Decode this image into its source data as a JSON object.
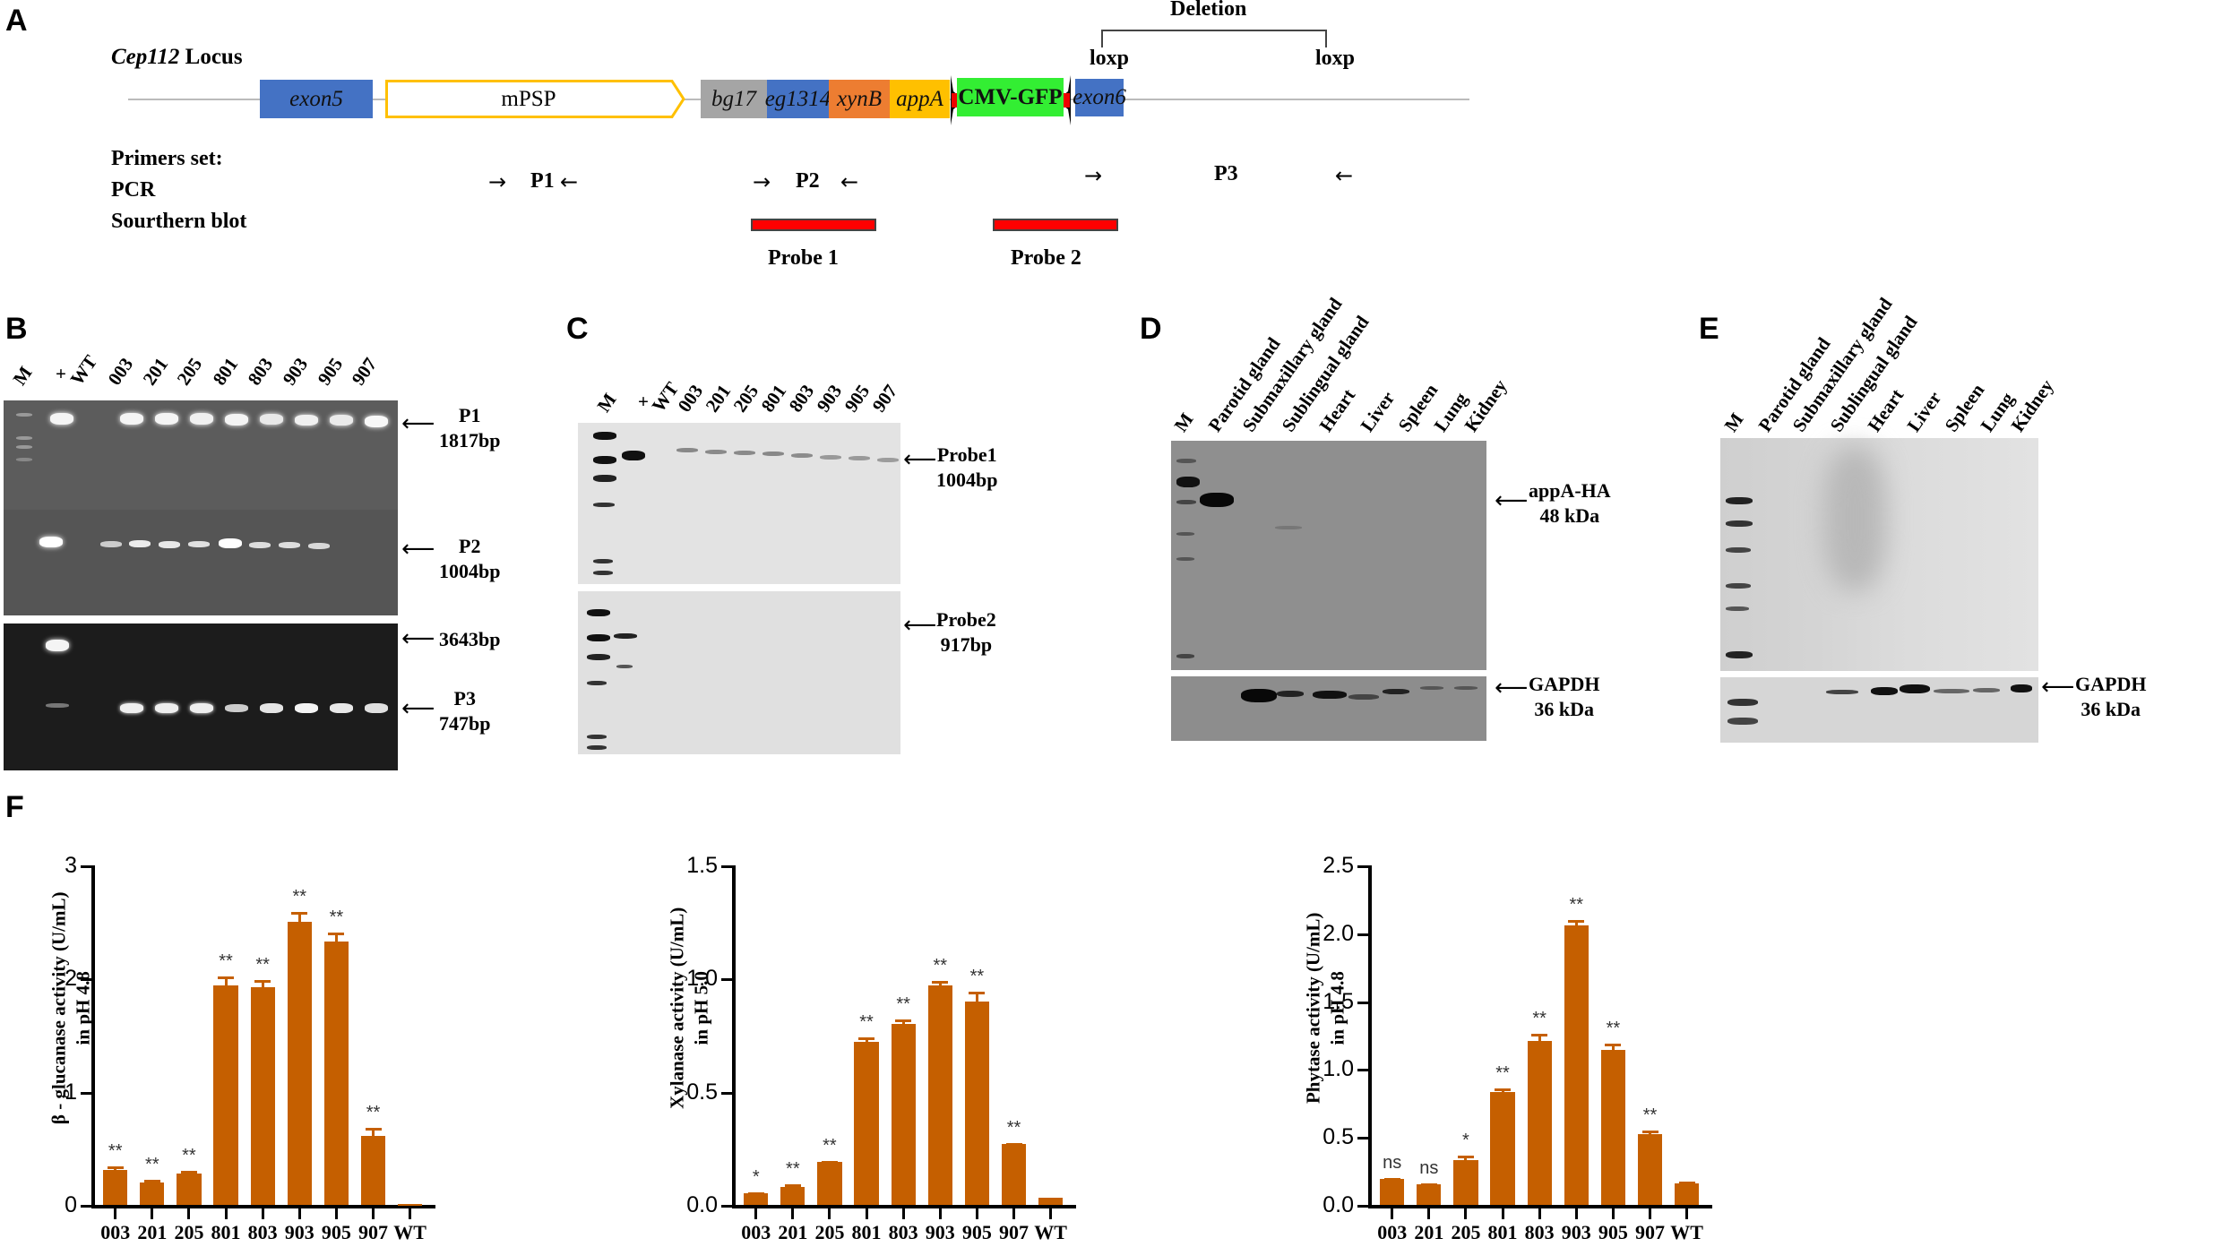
{
  "panels": {
    "A": {
      "letter": "A",
      "locus_gene": "Cep112",
      "locus_word": "Locus",
      "deletion_label": "Deletion",
      "loxp_left": "loxp",
      "loxp_right": "loxp",
      "segments": [
        {
          "label": "exon5",
          "italic": true,
          "color": "#4472c4"
        },
        {
          "label": "mPSP",
          "italic": false,
          "color": "#ffffff",
          "border": "#ffc000"
        },
        {
          "label": "bg17",
          "italic": true,
          "color": "#a5a5a5"
        },
        {
          "label": "eg1314",
          "italic": true,
          "color": "#4472c4"
        },
        {
          "label": "xynB",
          "italic": true,
          "color": "#ed7d31"
        },
        {
          "label": "appA",
          "italic": true,
          "color": "#ffc000"
        },
        {
          "label": "CMV-GFP",
          "italic": false,
          "color": "#33ee33"
        },
        {
          "label": "exon6",
          "italic": true,
          "color": "#4472c4"
        }
      ],
      "primers_title": "Primers set:",
      "pcr_label": "PCR",
      "southern_label": "Sourthern blot",
      "primers": [
        "P1",
        "P2",
        "P3"
      ],
      "probes": [
        "Probe 1",
        "Probe 2"
      ],
      "probe_color": "#ff0000"
    },
    "B": {
      "letter": "B",
      "lanes": [
        "M",
        "+",
        "WT",
        "003",
        "201",
        "205",
        "801",
        "803",
        "903",
        "905",
        "907"
      ],
      "gels": [
        {
          "label": "P1",
          "size": "1817bp"
        },
        {
          "label": "P2",
          "size": "1004bp"
        },
        {
          "label": "P3",
          "size": "747bp",
          "extra": "3643bp"
        }
      ]
    },
    "C": {
      "letter": "C",
      "lanes": [
        "M",
        "+",
        "WT",
        "003",
        "201",
        "205",
        "801",
        "803",
        "903",
        "905",
        "907"
      ],
      "blots": [
        {
          "label": "Probe1",
          "size": "1004bp"
        },
        {
          "label": "Probe2",
          "size": "917bp"
        }
      ]
    },
    "D": {
      "letter": "D",
      "lanes": [
        "M",
        "Parotid gland",
        "Submaxillary  gland",
        "Sublingual gland",
        "Heart",
        "Liver",
        "Spleen",
        "Lung",
        "Kidney"
      ],
      "target": {
        "label": "appA-HA",
        "size": "48 kDa"
      },
      "control": {
        "label": "GAPDH",
        "size": "36 kDa"
      }
    },
    "E": {
      "letter": "E",
      "lanes": [
        "M",
        "Parotid gland",
        "Submaxillary  gland",
        "Sublingual gland",
        "Heart",
        "Liver",
        "Spleen",
        "Lung",
        "Kidney"
      ],
      "control": {
        "label": "GAPDH",
        "size": "36 kDa"
      }
    },
    "F": {
      "letter": "F"
    }
  },
  "chart_data": [
    {
      "type": "bar",
      "title": "",
      "xlabel": "",
      "ylabel": "β - glucanase activity  (U/mL) in pH 4.8",
      "ylabel_line1": "β - glucanase activity  (U/mL)",
      "ylabel_line2": "in pH 4.8",
      "categories": [
        "003",
        "201",
        "205",
        "801",
        "803",
        "903",
        "905",
        "907",
        "WT"
      ],
      "values": [
        0.31,
        0.2,
        0.28,
        1.94,
        1.92,
        2.5,
        2.33,
        0.61,
        0.01
      ],
      "errors": [
        0.03,
        0.02,
        0.02,
        0.08,
        0.07,
        0.09,
        0.08,
        0.07,
        0.0
      ],
      "significance": [
        "**",
        "**",
        "**",
        "**",
        "**",
        "**",
        "**",
        "**",
        ""
      ],
      "ylim": [
        0,
        3
      ],
      "yticks": [
        "0",
        "1",
        "2",
        "3"
      ],
      "bar_color": "#c55f00",
      "grid": false
    },
    {
      "type": "bar",
      "title": "",
      "xlabel": "",
      "ylabel": "Xylanase activity  (U/mL) in pH 5.0",
      "ylabel_line1": "Xylanase activity  (U/mL)",
      "ylabel_line2": "in pH 5.0",
      "categories": [
        "003",
        "201",
        "205",
        "801",
        "803",
        "903",
        "905",
        "907",
        "WT"
      ],
      "values": [
        0.05,
        0.08,
        0.19,
        0.72,
        0.8,
        0.97,
        0.9,
        0.27,
        0.03
      ],
      "errors": [
        0.005,
        0.01,
        0.005,
        0.02,
        0.02,
        0.02,
        0.04,
        0.005,
        0.003
      ],
      "significance": [
        "*",
        "**",
        "**",
        "**",
        "**",
        "**",
        "**",
        "**",
        ""
      ],
      "ylim": [
        0,
        1.5
      ],
      "yticks": [
        "0.0",
        "0.5",
        "1.0",
        "1.5"
      ],
      "bar_color": "#c55f00",
      "grid": false
    },
    {
      "type": "bar",
      "title": "",
      "xlabel": "",
      "ylabel": "Phytase activity  (U/mL) in pH 4.8",
      "ylabel_line1": "Phytase activity  (U/mL)",
      "ylabel_line2": "in pH 4.8",
      "categories": [
        "003",
        "201",
        "205",
        "801",
        "803",
        "903",
        "905",
        "907",
        "WT"
      ],
      "values": [
        0.19,
        0.15,
        0.33,
        0.83,
        1.21,
        2.06,
        1.14,
        0.52,
        0.16
      ],
      "errors": [
        0.01,
        0.01,
        0.03,
        0.03,
        0.05,
        0.04,
        0.05,
        0.03,
        0.01
      ],
      "significance": [
        "ns",
        "ns",
        "*",
        "**",
        "**",
        "**",
        "**",
        "**",
        ""
      ],
      "ylim": [
        0,
        2.5
      ],
      "yticks": [
        "0.0",
        "0.5",
        "1.0",
        "1.5",
        "2.0",
        "2.5"
      ],
      "bar_color": "#c55f00",
      "grid": false
    }
  ]
}
